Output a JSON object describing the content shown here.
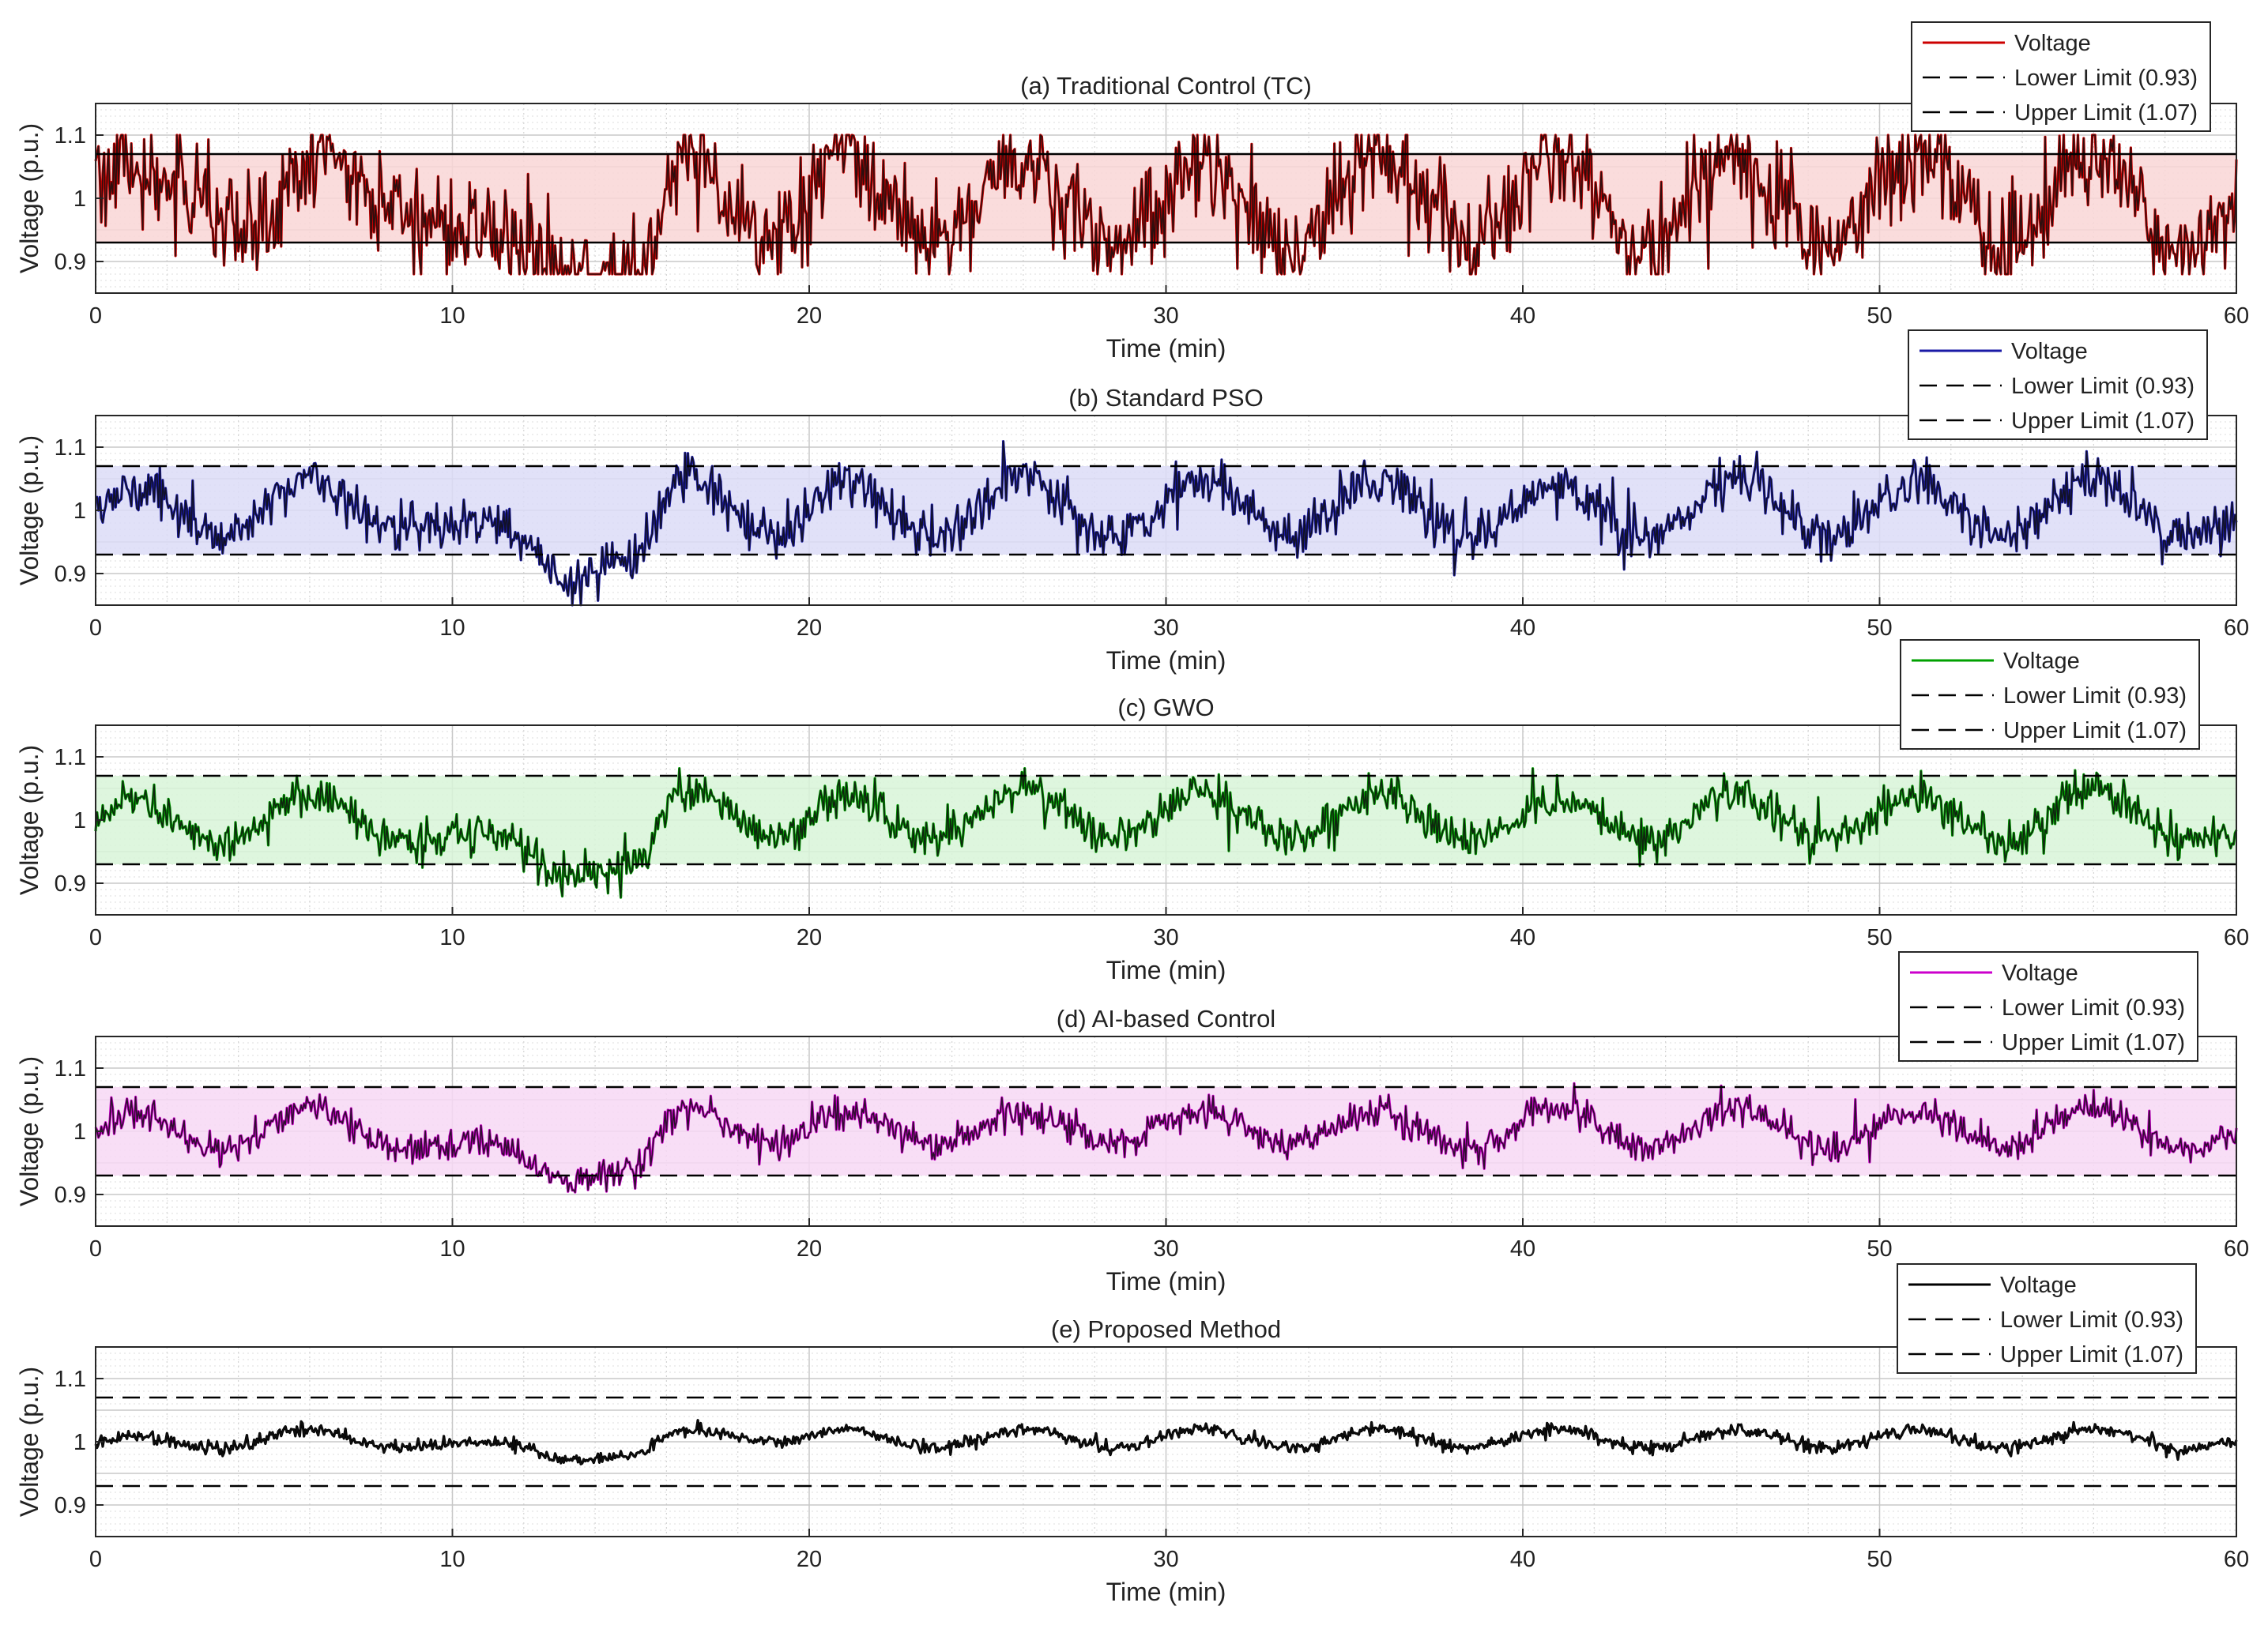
{
  "chart_data": [
    {
      "type": "line",
      "title": "(a) Traditional Control (TC)",
      "xlabel": "Time (min)",
      "ylabel": "Voltage (p.u.)",
      "xlim": [
        0,
        60
      ],
      "ylim": [
        0.85,
        1.15
      ],
      "xticks": [
        "0",
        "10",
        "20",
        "30",
        "40",
        "50",
        "60"
      ],
      "yticks": [
        "0.9",
        "1",
        "1.1"
      ],
      "grid": true,
      "legend_position": "top-right",
      "color": "#cc0000",
      "fill_color": "#f9d6d6",
      "limit_style": "solid",
      "series": [
        {
          "name": "Voltage",
          "noise": 0.075,
          "clip": [
            0.88,
            1.1
          ]
        },
        {
          "name": "Lower Limit (0.93)",
          "value": 0.93
        },
        {
          "name": "Upper Limit (1.07)",
          "value": 1.07
        }
      ],
      "voltage_profile": {
        "x": [
          0,
          2,
          4,
          6.5,
          9,
          11,
          13,
          15,
          16.5,
          19,
          21,
          23.5,
          26,
          28.5,
          31,
          33.5,
          36,
          38.5,
          41,
          43.5,
          46,
          48.5,
          51,
          53.5,
          56,
          58.5,
          60
        ],
        "y": [
          1.05,
          1.03,
          0.94,
          1.07,
          0.96,
          0.95,
          0.88,
          0.88,
          1.07,
          0.93,
          1.07,
          0.92,
          1.06,
          0.93,
          1.06,
          0.92,
          1.07,
          0.93,
          1.07,
          0.92,
          1.07,
          0.92,
          1.07,
          0.93,
          1.07,
          0.92,
          0.98
        ]
      }
    },
    {
      "type": "line",
      "title": "(b) Standard PSO",
      "xlabel": "Time (min)",
      "ylabel": "Voltage (p.u.)",
      "xlim": [
        0,
        60
      ],
      "ylim": [
        0.85,
        1.15
      ],
      "xticks": [
        "0",
        "10",
        "20",
        "30",
        "40",
        "50",
        "60"
      ],
      "yticks": [
        "0.9",
        "1",
        "1.1"
      ],
      "grid": true,
      "legend_position": "top-right",
      "color": "#1a1aa6",
      "fill_color": "#dcdcf7",
      "limit_style": "dashed",
      "series": [
        {
          "name": "Voltage",
          "noise": 0.035,
          "clip": [
            0.85,
            1.14
          ]
        },
        {
          "name": "Lower Limit (0.93)",
          "value": 0.93
        },
        {
          "name": "Upper Limit (1.07)",
          "value": 1.07
        }
      ],
      "voltage_profile": {
        "x": [
          0,
          1,
          3.5,
          6,
          8.5,
          11,
          13.5,
          15,
          16.5,
          19,
          21,
          23.5,
          26,
          28.5,
          31,
          33.5,
          36,
          38.5,
          41,
          43.5,
          46,
          48.5,
          51,
          53.5,
          56,
          58.5,
          60
        ],
        "y": [
          1.0,
          1.04,
          0.96,
          1.05,
          0.97,
          0.98,
          0.89,
          0.92,
          1.06,
          0.96,
          1.05,
          0.96,
          1.05,
          0.96,
          1.04,
          0.96,
          1.04,
          0.96,
          1.04,
          0.96,
          1.05,
          0.96,
          1.04,
          0.96,
          1.05,
          0.96,
          0.98
        ]
      }
    },
    {
      "type": "line",
      "title": "(c) GWO",
      "xlabel": "Time (min)",
      "ylabel": "Voltage (p.u.)",
      "xlim": [
        0,
        60
      ],
      "ylim": [
        0.85,
        1.15
      ],
      "xticks": [
        "0",
        "10",
        "20",
        "30",
        "40",
        "50",
        "60"
      ],
      "yticks": [
        "0.9",
        "1",
        "1.1"
      ],
      "grid": true,
      "legend_position": "top-right",
      "color": "#00a000",
      "fill_color": "#d8f5d8",
      "limit_style": "dashed",
      "series": [
        {
          "name": "Voltage",
          "noise": 0.028,
          "clip": [
            0.86,
            1.12
          ]
        },
        {
          "name": "Lower Limit (0.93)",
          "value": 0.93
        },
        {
          "name": "Upper Limit (1.07)",
          "value": 1.07
        }
      ],
      "voltage_profile": {
        "x": [
          0,
          1,
          3.5,
          6,
          8.5,
          11,
          13.5,
          15,
          16.5,
          19,
          21,
          23.5,
          26,
          28.5,
          31,
          33.5,
          36,
          38.5,
          41,
          43.5,
          46,
          48.5,
          51,
          53.5,
          56,
          58.5,
          60
        ],
        "y": [
          1.0,
          1.04,
          0.96,
          1.04,
          0.97,
          0.98,
          0.91,
          0.93,
          1.05,
          0.97,
          1.04,
          0.97,
          1.05,
          0.97,
          1.04,
          0.97,
          1.04,
          0.97,
          1.03,
          0.97,
          1.04,
          0.97,
          1.04,
          0.97,
          1.05,
          0.97,
          0.98
        ]
      }
    },
    {
      "type": "line",
      "title": "(d) AI-based Control",
      "xlabel": "Time (min)",
      "ylabel": "Voltage (p.u.)",
      "xlim": [
        0,
        60
      ],
      "ylim": [
        0.85,
        1.15
      ],
      "xticks": [
        "0",
        "10",
        "20",
        "30",
        "40",
        "50",
        "60"
      ],
      "yticks": [
        "0.9",
        "1",
        "1.1"
      ],
      "grid": true,
      "legend_position": "top-right",
      "color": "#cc00cc",
      "fill_color": "#f7d8f4",
      "limit_style": "dashed",
      "series": [
        {
          "name": "Voltage",
          "noise": 0.022,
          "clip": [
            0.88,
            1.1
          ]
        },
        {
          "name": "Lower Limit (0.93)",
          "value": 0.93
        },
        {
          "name": "Upper Limit (1.07)",
          "value": 1.07
        }
      ],
      "voltage_profile": {
        "x": [
          0,
          1,
          3.5,
          6,
          8.5,
          11,
          13.5,
          15,
          16.5,
          19,
          21,
          23.5,
          26,
          28.5,
          31,
          33.5,
          36,
          38.5,
          41,
          43.5,
          46,
          48.5,
          51,
          53.5,
          56,
          58.5,
          60
        ],
        "y": [
          1.0,
          1.03,
          0.97,
          1.04,
          0.97,
          0.98,
          0.92,
          0.94,
          1.04,
          0.98,
          1.03,
          0.98,
          1.03,
          0.98,
          1.03,
          0.98,
          1.03,
          0.97,
          1.04,
          0.97,
          1.04,
          0.97,
          1.03,
          0.98,
          1.04,
          0.97,
          0.99
        ]
      }
    },
    {
      "type": "line",
      "title": "(e) Proposed Method",
      "xlabel": "Time (min)",
      "ylabel": "Voltage (p.u.)",
      "xlim": [
        0,
        60
      ],
      "ylim": [
        0.85,
        1.15
      ],
      "xticks": [
        "0",
        "10",
        "20",
        "30",
        "40",
        "50",
        "60"
      ],
      "yticks": [
        "0.9",
        "1",
        "1.1"
      ],
      "grid": true,
      "legend_position": "top-right",
      "color": "#000000",
      "fill_color": "none",
      "limit_style": "dashed",
      "series": [
        {
          "name": "Voltage",
          "noise": 0.009,
          "clip": [
            0.95,
            1.04
          ]
        },
        {
          "name": "Lower Limit (0.93)",
          "value": 0.93
        },
        {
          "name": "Upper Limit (1.07)",
          "value": 1.07
        }
      ],
      "voltage_profile": {
        "x": [
          0,
          1,
          3.5,
          6,
          8.5,
          11,
          13.5,
          15,
          16.5,
          19,
          21,
          23.5,
          26,
          28.5,
          31,
          33.5,
          36,
          38.5,
          41,
          43.5,
          46,
          48.5,
          51,
          53.5,
          56,
          58.5,
          60
        ],
        "y": [
          1.0,
          1.01,
          0.99,
          1.02,
          0.99,
          1.0,
          0.97,
          0.98,
          1.02,
          1.0,
          1.02,
          0.99,
          1.02,
          0.99,
          1.02,
          0.99,
          1.02,
          0.99,
          1.02,
          0.99,
          1.02,
          0.99,
          1.02,
          0.99,
          1.02,
          0.99,
          1.0
        ]
      }
    }
  ]
}
